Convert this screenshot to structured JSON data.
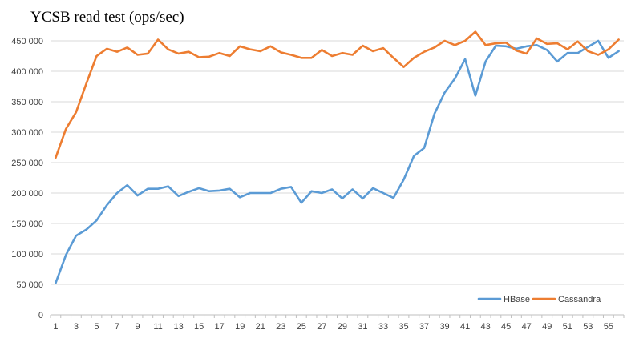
{
  "chart_data": {
    "type": "line",
    "title": "YCSB read test (ops/sec)",
    "xlabel": "",
    "ylabel": "",
    "ylim": [
      0,
      450000
    ],
    "yticks": [
      0,
      50000,
      100000,
      150000,
      200000,
      250000,
      300000,
      350000,
      400000,
      450000
    ],
    "ytick_labels": [
      "0",
      "50 000",
      "100 000",
      "150 000",
      "200 000",
      "250 000",
      "300 000",
      "350 000",
      "400 000",
      "450 000"
    ],
    "x": [
      1,
      2,
      3,
      4,
      5,
      6,
      7,
      8,
      9,
      10,
      11,
      12,
      13,
      14,
      15,
      16,
      17,
      18,
      19,
      20,
      21,
      22,
      23,
      24,
      25,
      26,
      27,
      28,
      29,
      30,
      31,
      32,
      33,
      34,
      35,
      36,
      37,
      38,
      39,
      40,
      41,
      42,
      43,
      44,
      45,
      46,
      47,
      48,
      49,
      50,
      51,
      52,
      53,
      54,
      55,
      56
    ],
    "xtick_labels": [
      "1",
      "3",
      "5",
      "7",
      "9",
      "11",
      "13",
      "15",
      "17",
      "19",
      "21",
      "23",
      "25",
      "27",
      "29",
      "31",
      "33",
      "35",
      "37",
      "39",
      "41",
      "43",
      "45",
      "47",
      "49",
      "51",
      "53",
      "55"
    ],
    "grid": true,
    "legend_position": "bottom-right",
    "series": [
      {
        "name": "HBase",
        "color": "#5b9bd5",
        "values": [
          52000,
          98000,
          130000,
          140000,
          155000,
          180000,
          200000,
          213000,
          196000,
          207000,
          207000,
          211000,
          195000,
          202000,
          208000,
          203000,
          204000,
          207000,
          193000,
          200000,
          200000,
          200000,
          207000,
          210000,
          184000,
          203000,
          200000,
          206000,
          191000,
          206000,
          191000,
          208000,
          200000,
          192000,
          222000,
          261000,
          274000,
          330000,
          365000,
          388000,
          420000,
          360000,
          416000,
          442000,
          441000,
          437000,
          441000,
          443000,
          435000,
          416000,
          430000,
          430000,
          440000,
          450000,
          422000,
          433000
        ]
      },
      {
        "name": "Cassandra",
        "color": "#ed7d31",
        "values": [
          258000,
          305000,
          333000,
          380000,
          425000,
          437000,
          432000,
          439000,
          427000,
          429000,
          452000,
          436000,
          429000,
          432000,
          423000,
          424000,
          430000,
          425000,
          441000,
          436000,
          433000,
          441000,
          431000,
          427000,
          422000,
          422000,
          435000,
          425000,
          430000,
          427000,
          442000,
          433000,
          438000,
          422000,
          407000,
          422000,
          432000,
          439000,
          450000,
          443000,
          450000,
          465000,
          443000,
          446000,
          447000,
          434000,
          429000,
          454000,
          445000,
          446000,
          436000,
          449000,
          433000,
          427000,
          436000,
          452000
        ]
      }
    ]
  }
}
